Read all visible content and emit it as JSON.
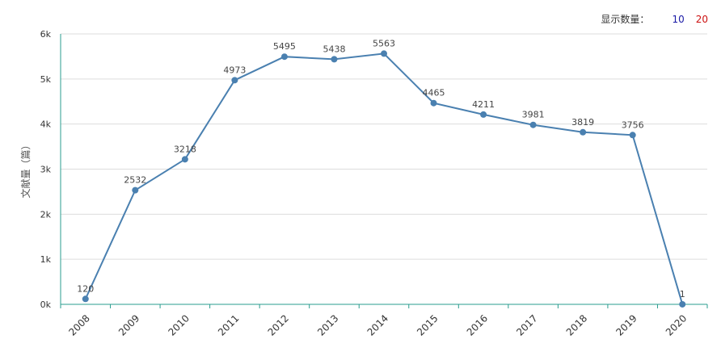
{
  "controls": {
    "label": "显示数量：",
    "options": [
      "10",
      "20"
    ]
  },
  "chart_data": {
    "type": "line",
    "title": "",
    "xlabel": "",
    "ylabel": "文献量（篇）",
    "categories": [
      "2008",
      "2009",
      "2010",
      "2011",
      "2012",
      "2013",
      "2014",
      "2015",
      "2016",
      "2017",
      "2018",
      "2019",
      "2020"
    ],
    "values": [
      120,
      2532,
      3218,
      4973,
      5495,
      5438,
      5563,
      4465,
      4211,
      3981,
      3819,
      3756,
      1
    ],
    "ylim": [
      0,
      6000
    ],
    "yticks": [
      "0k",
      "1k",
      "2k",
      "3k",
      "4k",
      "5k",
      "6k"
    ],
    "grid": true,
    "colors": {
      "line": "#4a80b0",
      "axis": "#2a9d8f",
      "grid": "#dddddd"
    }
  }
}
